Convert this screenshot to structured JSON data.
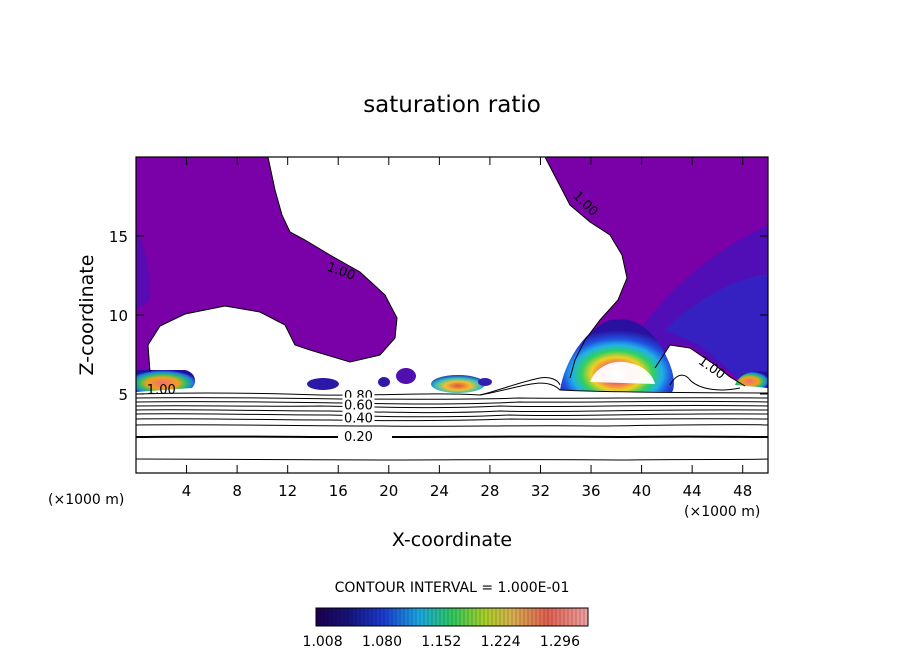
{
  "chart_data": {
    "type": "contour",
    "title": "saturation ratio",
    "xlabel": "X-coordinate",
    "ylabel": "Z-coordinate",
    "x_unit_note_left": "(×1000 m)",
    "x_unit_note_right": "(×1000 m)",
    "xlim": [
      0,
      50
    ],
    "ylim": [
      0,
      20
    ],
    "x_ticks": [
      4,
      8,
      12,
      16,
      20,
      24,
      28,
      32,
      36,
      40,
      44,
      48
    ],
    "y_ticks": [
      5,
      10,
      15
    ],
    "contour_interval_label": "CONTOUR INTERVAL = 1.000E-01",
    "colorbar_ticks": [
      "1.008",
      "1.080",
      "1.152",
      "1.224",
      "1.296"
    ],
    "colorbar_range": [
      1.0,
      1.33
    ],
    "contour_labels": [
      {
        "text": "1.00",
        "x": 16.2,
        "y": 12.7,
        "angle": 20
      },
      {
        "text": "1.00",
        "x": 35.5,
        "y": 17.0,
        "angle": 45
      },
      {
        "text": "1.00",
        "x": 45.5,
        "y": 6.6,
        "angle": 35
      },
      {
        "text": "1.00",
        "x": 2.0,
        "y": 5.2,
        "angle": 0
      },
      {
        "text": "0.80",
        "x": 17.6,
        "y": 4.8,
        "angle": 0
      },
      {
        "text": "0.60",
        "x": 17.6,
        "y": 4.2,
        "angle": 0
      },
      {
        "text": "0.40",
        "x": 17.6,
        "y": 3.4,
        "angle": 0
      },
      {
        "text": "0.20",
        "x": 17.6,
        "y": 2.2,
        "angle": 0
      }
    ],
    "subsaturated_contour_levels": [
      0.1,
      0.2,
      0.3,
      0.4,
      0.5,
      0.6,
      0.7,
      0.8,
      0.9
    ],
    "grid": false,
    "colors": {
      "supersaturated_fill": "#7a00a8",
      "clear_region": "#ffffff",
      "contour_line": "#000000"
    }
  }
}
